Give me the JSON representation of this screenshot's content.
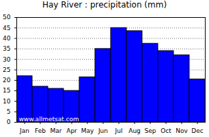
{
  "chart_data": {
    "type": "bar",
    "title": "Hay River : precipitation (mm)",
    "categories": [
      "Jan",
      "Feb",
      "Mar",
      "Apr",
      "May",
      "Jun",
      "Jul",
      "Aug",
      "Sep",
      "Oct",
      "Nov",
      "Dec"
    ],
    "values": [
      22,
      17,
      16,
      15,
      21.5,
      35,
      45,
      43.5,
      37.5,
      34,
      32,
      20.5
    ],
    "color": "#0000ff",
    "ylim": [
      0,
      50
    ],
    "yticks": [
      0,
      5,
      10,
      15,
      20,
      25,
      30,
      35,
      40,
      45,
      50
    ],
    "grid": true,
    "annotations": [
      "www.allmetsat.com"
    ]
  }
}
